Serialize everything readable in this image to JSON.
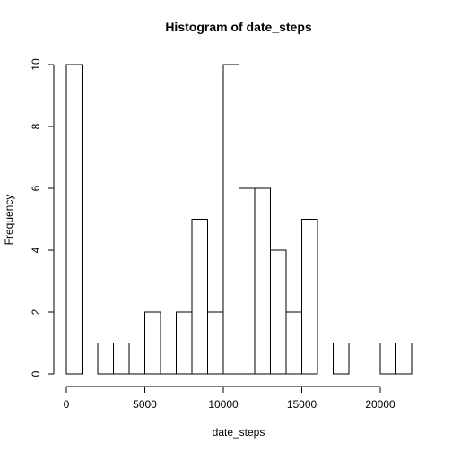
{
  "chart_data": {
    "type": "bar",
    "title": "Histogram of date_steps",
    "xlabel": "date_steps",
    "ylabel": "Frequency",
    "bin_width": 1000,
    "bin_start": 0,
    "values": [
      10,
      0,
      1,
      1,
      1,
      2,
      1,
      2,
      5,
      2,
      10,
      6,
      6,
      4,
      2,
      5,
      0,
      1,
      0,
      0,
      1,
      1
    ],
    "xlim": [
      0,
      22000
    ],
    "ylim": [
      0,
      10
    ],
    "xticks": [
      0,
      5000,
      10000,
      15000,
      20000
    ],
    "xtick_labels": [
      "0",
      "5000",
      "10000",
      "15000",
      "20000"
    ],
    "yticks": [
      0,
      2,
      4,
      6,
      8,
      10
    ],
    "ytick_labels": [
      "0",
      "2",
      "4",
      "6",
      "8",
      "10"
    ],
    "grid": false,
    "legend": "none"
  }
}
